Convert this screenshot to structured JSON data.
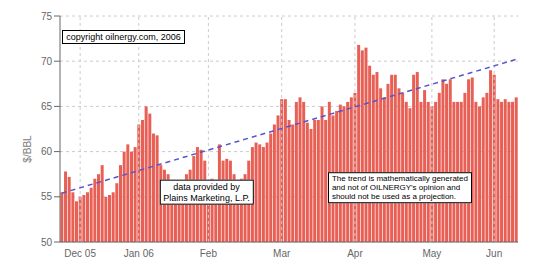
{
  "chart_data": {
    "type": "bar",
    "ylabel": "$/BBL",
    "ylim": [
      50,
      75
    ],
    "yticks": [
      50,
      55,
      60,
      65,
      70,
      75
    ],
    "grid": true,
    "color": "#E86055",
    "categories": [
      null,
      null,
      null,
      null,
      null,
      "Dec 05",
      null,
      null,
      null,
      null,
      null,
      null,
      null,
      null,
      null,
      null,
      null,
      null,
      null,
      null,
      null,
      "Jan 06",
      null,
      null,
      null,
      null,
      null,
      null,
      null,
      null,
      null,
      null,
      null,
      null,
      null,
      null,
      null,
      null,
      null,
      null,
      "Feb",
      null,
      null,
      null,
      null,
      null,
      null,
      null,
      null,
      null,
      null,
      null,
      null,
      null,
      null,
      null,
      null,
      null,
      null,
      null,
      "Mar",
      null,
      null,
      null,
      null,
      null,
      null,
      null,
      null,
      null,
      null,
      null,
      null,
      null,
      null,
      null,
      null,
      null,
      null,
      null,
      "Apr",
      null,
      null,
      null,
      null,
      null,
      null,
      null,
      null,
      null,
      null,
      null,
      null,
      null,
      null,
      null,
      null,
      null,
      null,
      null,
      null,
      "May",
      null,
      null,
      null,
      null,
      null,
      null,
      null,
      null,
      null,
      null,
      null,
      null,
      null,
      null,
      null,
      null,
      "Jun",
      null,
      null,
      null,
      null,
      null,
      null
    ],
    "values": [
      55.5,
      57.8,
      57.2,
      55.5,
      54.5,
      55.0,
      55.2,
      55.5,
      56.0,
      57.0,
      57.5,
      58.5,
      55.0,
      55.2,
      55.5,
      56.5,
      58.5,
      60.0,
      60.8,
      60.0,
      60.5,
      63.0,
      63.5,
      65.0,
      64.2,
      62.0,
      61.8,
      58.5,
      58.0,
      57.5,
      56.0,
      55.5,
      56.5,
      56.0,
      57.5,
      58.0,
      59.5,
      60.5,
      60.2,
      59.0,
      56.5,
      57.0,
      56.5,
      60.8,
      59.0,
      59.2,
      59.0,
      57.5,
      56.5,
      57.0,
      57.5,
      59.0,
      60.5,
      61.0,
      60.8,
      60.5,
      61.0,
      62.0,
      63.0,
      64.0,
      65.8,
      65.8,
      63.5,
      63.0,
      65.5,
      66.0,
      65.5,
      63.2,
      62.5,
      63.5,
      63.5,
      65.0,
      63.5,
      65.5,
      64.0,
      64.5,
      65.2,
      65.0,
      65.5,
      66.0,
      66.5,
      71.8,
      71.2,
      71.5,
      69.5,
      68.5,
      68.8,
      67.0,
      66.0,
      67.5,
      68.5,
      68.5,
      67.0,
      66.5,
      65.5,
      64.8,
      68.5,
      68.8,
      65.5,
      66.8,
      65.5,
      65.0,
      65.5,
      66.5,
      68.0,
      67.5,
      68.0,
      65.5,
      65.5,
      65.5,
      66.5,
      68.0,
      68.2,
      65.5,
      65.0,
      66.0,
      66.5,
      69.0,
      68.5,
      65.8,
      65.5,
      65.8,
      65.5,
      65.5,
      66.0
    ],
    "trend_start": 55.4,
    "trend_end": 70.2,
    "trend_color": "#5555CC",
    "trend_line_style": "dashed",
    "annotations": [
      "copyright oilnergy.com, 2006",
      "data provided by\nPlains Marketing, L.P.",
      "The trend is mathematically generated\nand not of OILNERGY's opinion and\nshould not be used as a projection."
    ]
  }
}
